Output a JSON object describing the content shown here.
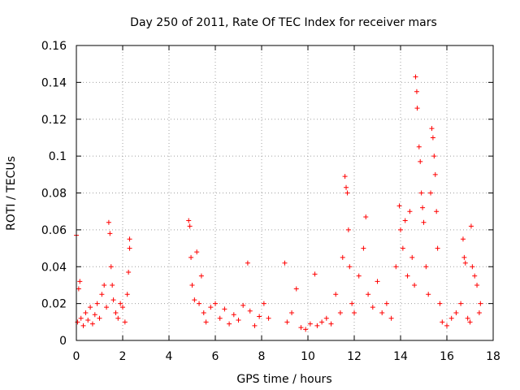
{
  "chart_data": {
    "type": "scatter",
    "title": "Day 250 of 2011, Rate Of TEC Index for receiver mars",
    "xlabel": "GPS time / hours",
    "ylabel": "ROTI / TECUs",
    "xlim": [
      0,
      18
    ],
    "ylim": [
      0,
      0.16
    ],
    "x_ticks": [
      "0",
      "2",
      "4",
      "6",
      "8",
      "10",
      "12",
      "14",
      "16",
      "18"
    ],
    "x_tick_values": [
      0,
      2,
      4,
      6,
      8,
      10,
      12,
      14,
      16,
      18
    ],
    "y_ticks": [
      "0",
      "0.02",
      "0.04",
      "0.06",
      "0.08",
      "0.1",
      "0.12",
      "0.14",
      "0.16"
    ],
    "y_tick_values": [
      0,
      0.02,
      0.04,
      0.06,
      0.08,
      0.1,
      0.12,
      0.14,
      0.16
    ],
    "grid": true,
    "marker": "+",
    "color": "#ff0000",
    "series": [
      {
        "name": "ROTI",
        "points": [
          [
            0.0,
            0.057
          ],
          [
            0.05,
            0.01
          ],
          [
            0.1,
            0.028
          ],
          [
            0.15,
            0.032
          ],
          [
            0.2,
            0.012
          ],
          [
            0.3,
            0.008
          ],
          [
            0.4,
            0.015
          ],
          [
            0.5,
            0.011
          ],
          [
            0.6,
            0.018
          ],
          [
            0.7,
            0.009
          ],
          [
            0.8,
            0.014
          ],
          [
            0.9,
            0.02
          ],
          [
            1.0,
            0.012
          ],
          [
            1.1,
            0.025
          ],
          [
            1.2,
            0.03
          ],
          [
            1.3,
            0.018
          ],
          [
            1.4,
            0.064
          ],
          [
            1.45,
            0.058
          ],
          [
            1.5,
            0.04
          ],
          [
            1.55,
            0.03
          ],
          [
            1.6,
            0.022
          ],
          [
            1.7,
            0.015
          ],
          [
            1.8,
            0.012
          ],
          [
            1.9,
            0.02
          ],
          [
            2.0,
            0.018
          ],
          [
            2.1,
            0.01
          ],
          [
            2.2,
            0.025
          ],
          [
            2.25,
            0.037
          ],
          [
            2.3,
            0.055
          ],
          [
            2.3,
            0.05
          ],
          [
            4.85,
            0.065
          ],
          [
            4.9,
            0.062
          ],
          [
            4.95,
            0.045
          ],
          [
            5.0,
            0.03
          ],
          [
            5.1,
            0.022
          ],
          [
            5.2,
            0.048
          ],
          [
            5.3,
            0.02
          ],
          [
            5.4,
            0.035
          ],
          [
            5.5,
            0.015
          ],
          [
            5.6,
            0.01
          ],
          [
            5.8,
            0.018
          ],
          [
            6.0,
            0.02
          ],
          [
            6.2,
            0.012
          ],
          [
            6.4,
            0.017
          ],
          [
            6.6,
            0.009
          ],
          [
            6.8,
            0.014
          ],
          [
            7.0,
            0.011
          ],
          [
            7.2,
            0.019
          ],
          [
            7.4,
            0.042
          ],
          [
            7.5,
            0.016
          ],
          [
            7.7,
            0.008
          ],
          [
            7.9,
            0.013
          ],
          [
            8.1,
            0.02
          ],
          [
            8.3,
            0.012
          ],
          [
            9.0,
            0.042
          ],
          [
            9.1,
            0.01
          ],
          [
            9.3,
            0.015
          ],
          [
            9.5,
            0.028
          ],
          [
            9.7,
            0.007
          ],
          [
            9.9,
            0.006
          ],
          [
            10.1,
            0.009
          ],
          [
            10.3,
            0.036
          ],
          [
            10.4,
            0.008
          ],
          [
            10.6,
            0.01
          ],
          [
            10.8,
            0.012
          ],
          [
            11.0,
            0.009
          ],
          [
            11.2,
            0.025
          ],
          [
            11.4,
            0.015
          ],
          [
            11.5,
            0.045
          ],
          [
            11.6,
            0.089
          ],
          [
            11.65,
            0.083
          ],
          [
            11.7,
            0.08
          ],
          [
            11.75,
            0.06
          ],
          [
            11.8,
            0.04
          ],
          [
            11.9,
            0.02
          ],
          [
            12.0,
            0.015
          ],
          [
            12.2,
            0.035
          ],
          [
            12.4,
            0.05
          ],
          [
            12.5,
            0.067
          ],
          [
            12.6,
            0.025
          ],
          [
            12.8,
            0.018
          ],
          [
            13.0,
            0.032
          ],
          [
            13.2,
            0.015
          ],
          [
            13.4,
            0.02
          ],
          [
            13.6,
            0.012
          ],
          [
            13.8,
            0.04
          ],
          [
            13.95,
            0.073
          ],
          [
            14.0,
            0.06
          ],
          [
            14.1,
            0.05
          ],
          [
            14.2,
            0.065
          ],
          [
            14.3,
            0.035
          ],
          [
            14.4,
            0.07
          ],
          [
            14.5,
            0.045
          ],
          [
            14.6,
            0.03
          ],
          [
            14.65,
            0.143
          ],
          [
            14.7,
            0.135
          ],
          [
            14.72,
            0.126
          ],
          [
            14.8,
            0.105
          ],
          [
            14.85,
            0.097
          ],
          [
            14.9,
            0.08
          ],
          [
            14.95,
            0.072
          ],
          [
            15.0,
            0.064
          ],
          [
            15.1,
            0.04
          ],
          [
            15.2,
            0.025
          ],
          [
            15.3,
            0.08
          ],
          [
            15.35,
            0.115
          ],
          [
            15.4,
            0.11
          ],
          [
            15.45,
            0.1
          ],
          [
            15.5,
            0.09
          ],
          [
            15.55,
            0.07
          ],
          [
            15.6,
            0.05
          ],
          [
            15.7,
            0.02
          ],
          [
            15.8,
            0.01
          ],
          [
            16.0,
            0.008
          ],
          [
            16.2,
            0.012
          ],
          [
            16.4,
            0.015
          ],
          [
            16.6,
            0.02
          ],
          [
            16.7,
            0.055
          ],
          [
            16.75,
            0.045
          ],
          [
            16.8,
            0.042
          ],
          [
            16.9,
            0.012
          ],
          [
            17.0,
            0.01
          ],
          [
            17.05,
            0.062
          ],
          [
            17.1,
            0.04
          ],
          [
            17.2,
            0.035
          ],
          [
            17.3,
            0.03
          ],
          [
            17.4,
            0.015
          ],
          [
            17.45,
            0.02
          ]
        ]
      }
    ]
  }
}
